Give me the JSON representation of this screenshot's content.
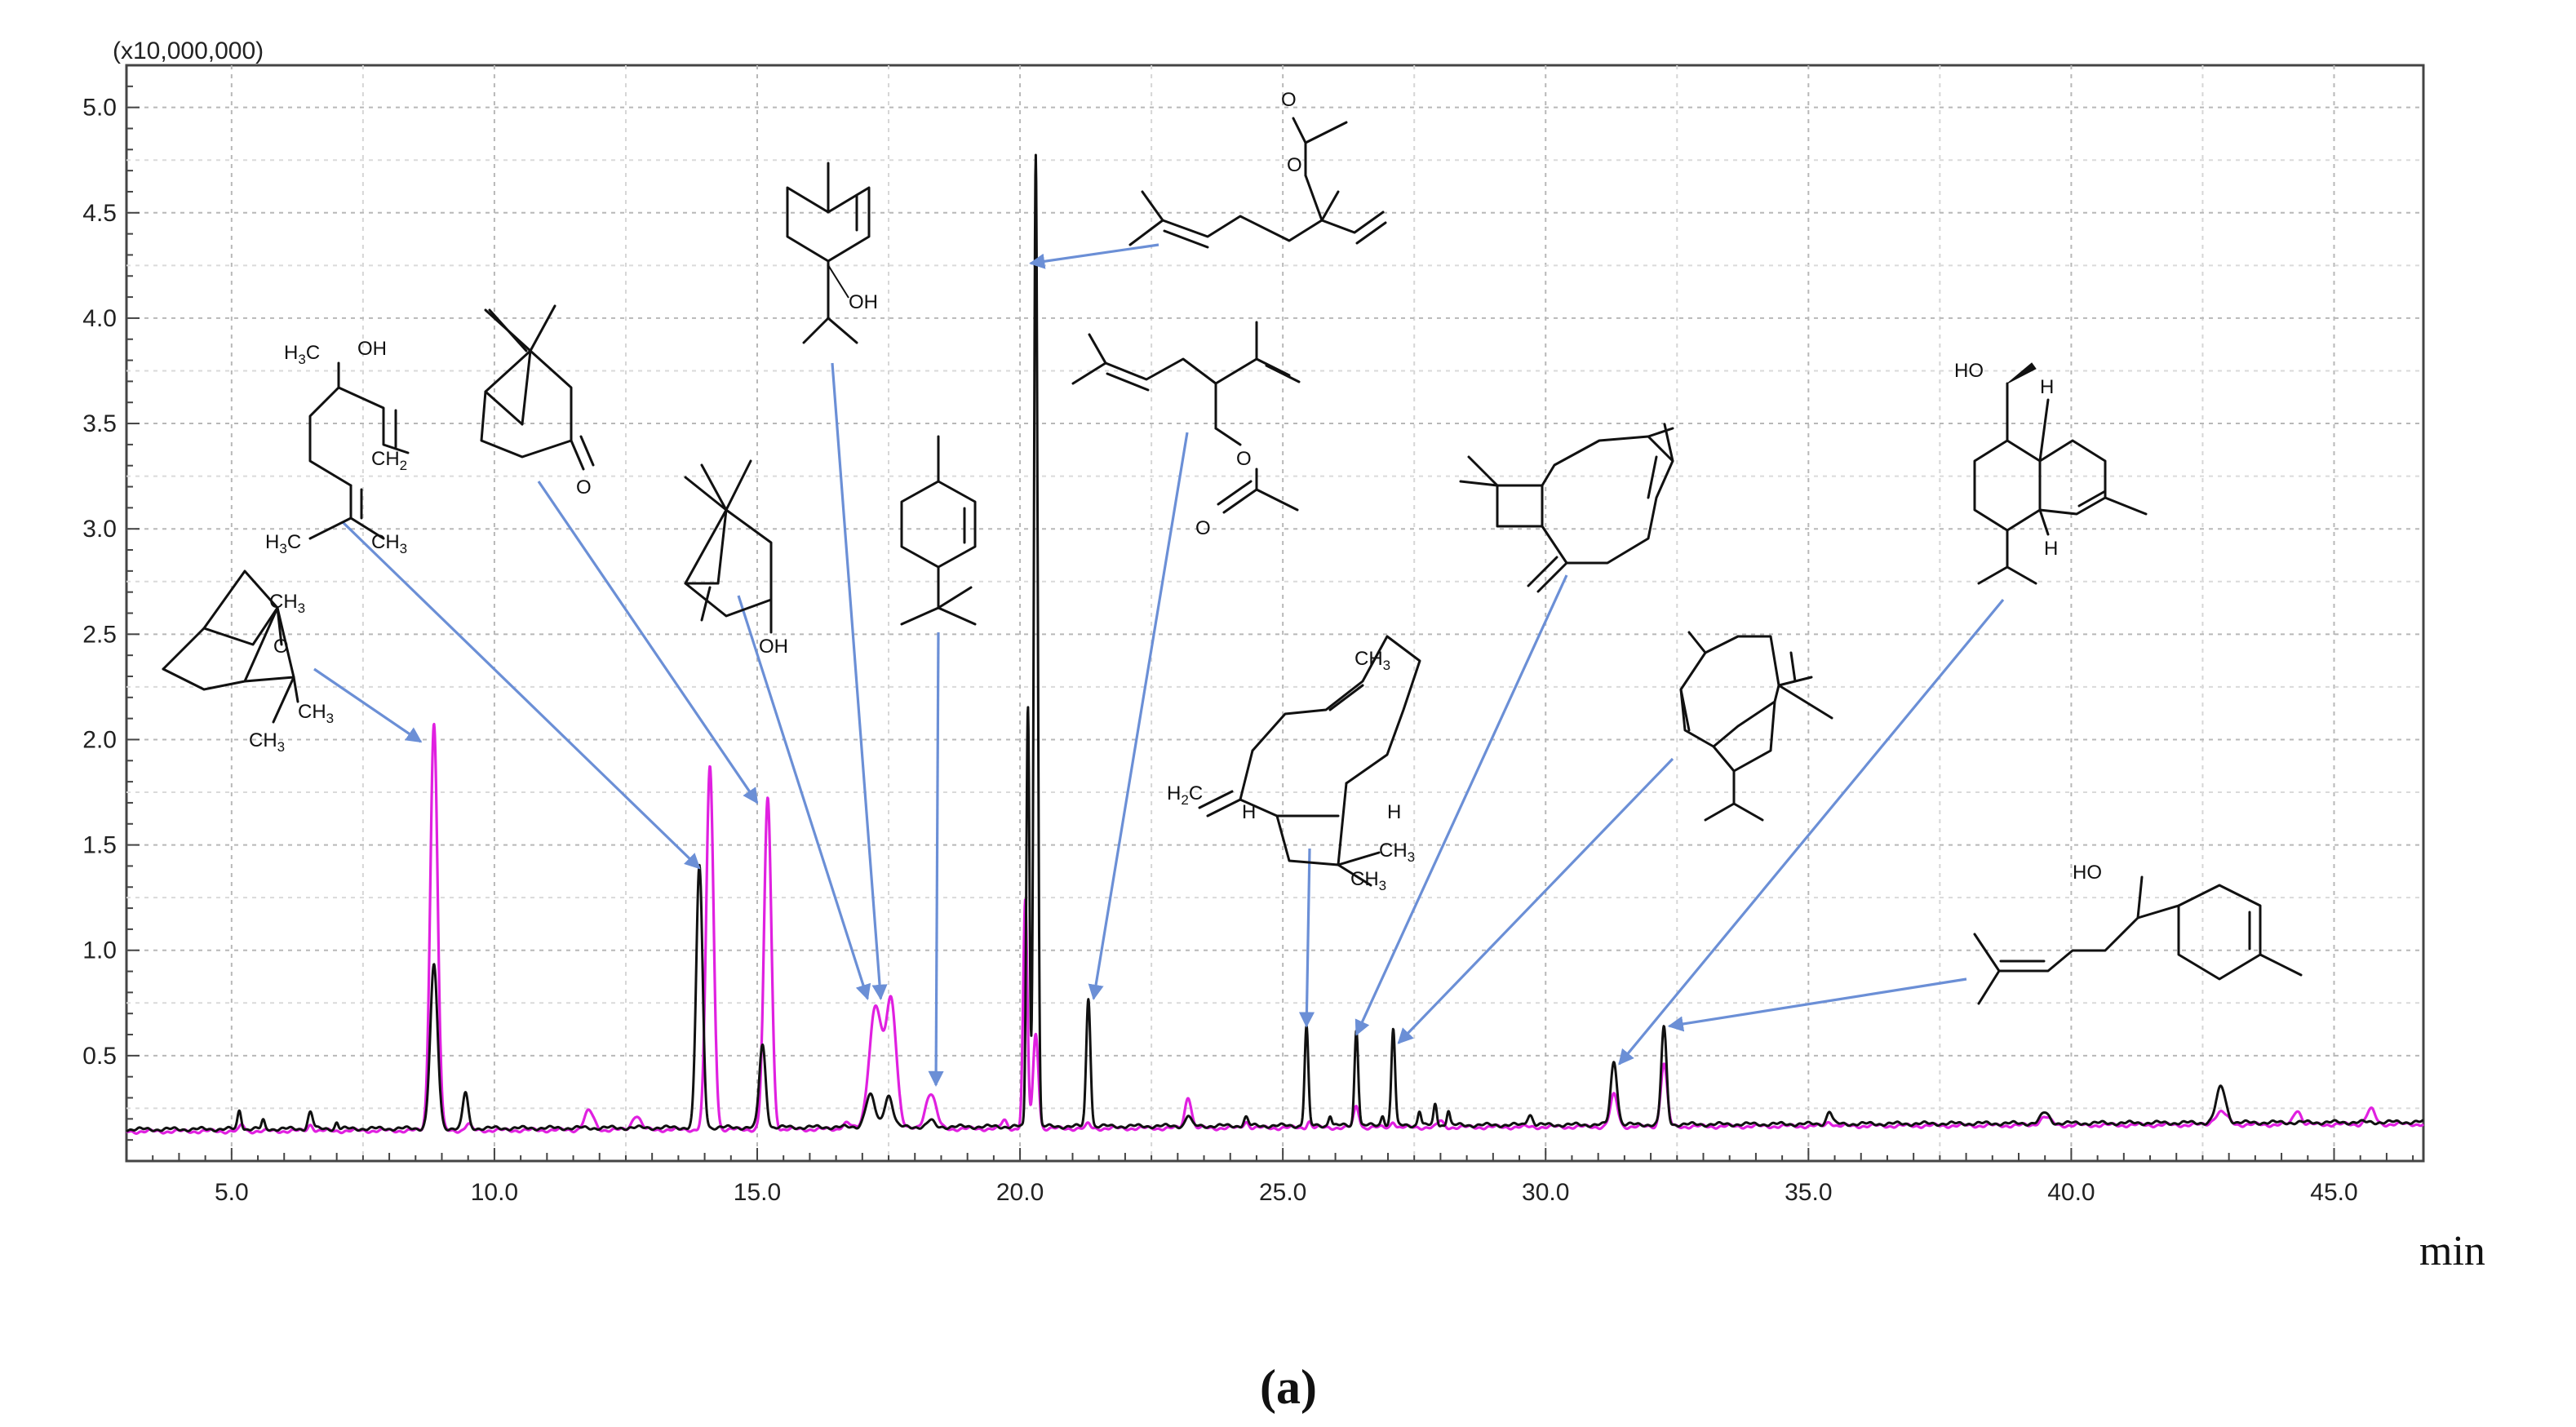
{
  "chart_data": {
    "type": "line",
    "title": "",
    "y_multiplier_label": "(x10,000,000)",
    "xlabel": "min",
    "caption": "(a)",
    "xlim": [
      3.0,
      46.7
    ],
    "ylim": [
      0.0,
      5.2
    ],
    "x_ticks": [
      "5.0",
      "10.0",
      "15.0",
      "20.0",
      "25.0",
      "30.0",
      "35.0",
      "40.0",
      "45.0"
    ],
    "y_ticks": [
      "0.5",
      "1.0",
      "1.5",
      "2.0",
      "2.5",
      "3.0",
      "3.5",
      "4.0",
      "4.5",
      "5.0"
    ],
    "x_tick_values": [
      5,
      10,
      15,
      20,
      25,
      30,
      35,
      40,
      45
    ],
    "y_tick_values": [
      0.5,
      1.0,
      1.5,
      2.0,
      2.5,
      3.0,
      3.5,
      4.0,
      4.5,
      5.0
    ],
    "grid": true,
    "series": [
      {
        "color": "#e020e0",
        "baseline": 0.14,
        "peaks": [
          [
            5.2,
            0.03,
            0.04
          ],
          [
            6.5,
            0.03,
            0.05
          ],
          [
            8.85,
            1.93,
            0.07
          ],
          [
            9.5,
            0.03,
            0.05
          ],
          [
            11.8,
            0.09,
            0.09
          ],
          [
            12.7,
            0.07,
            0.08
          ],
          [
            14.1,
            1.72,
            0.07
          ],
          [
            15.2,
            1.57,
            0.07
          ],
          [
            16.7,
            0.03,
            0.08
          ],
          [
            17.25,
            0.58,
            0.12
          ],
          [
            17.55,
            0.6,
            0.1
          ],
          [
            18.3,
            0.17,
            0.1
          ],
          [
            19.7,
            0.04,
            0.05
          ],
          [
            20.1,
            1.08,
            0.04
          ],
          [
            20.3,
            0.45,
            0.05
          ],
          [
            21.3,
            0.02,
            0.04
          ],
          [
            23.2,
            0.15,
            0.06
          ],
          [
            24.3,
            0.03,
            0.05
          ],
          [
            25.5,
            0.03,
            0.04
          ],
          [
            26.4,
            0.1,
            0.05
          ],
          [
            27.1,
            0.03,
            0.04
          ],
          [
            28.0,
            0.03,
            0.05
          ],
          [
            31.3,
            0.15,
            0.07
          ],
          [
            32.25,
            0.3,
            0.06
          ],
          [
            35.4,
            0.02,
            0.06
          ],
          [
            39.5,
            0.04,
            0.1
          ],
          [
            42.85,
            0.06,
            0.12
          ],
          [
            44.3,
            0.07,
            0.07
          ],
          [
            45.7,
            0.07,
            0.08
          ]
        ]
      },
      {
        "color": "#111111",
        "baseline": 0.15,
        "peaks": [
          [
            5.15,
            0.09,
            0.035
          ],
          [
            5.6,
            0.04,
            0.03
          ],
          [
            6.5,
            0.08,
            0.045
          ],
          [
            7.0,
            0.03,
            0.03
          ],
          [
            8.85,
            0.77,
            0.07
          ],
          [
            9.45,
            0.17,
            0.05
          ],
          [
            13.9,
            1.24,
            0.06
          ],
          [
            15.1,
            0.39,
            0.06
          ],
          [
            17.15,
            0.15,
            0.09
          ],
          [
            17.5,
            0.15,
            0.08
          ],
          [
            18.3,
            0.03,
            0.06
          ],
          [
            20.15,
            2.0,
            0.03
          ],
          [
            20.3,
            4.62,
            0.035
          ],
          [
            21.3,
            0.61,
            0.04
          ],
          [
            23.2,
            0.05,
            0.05
          ],
          [
            24.3,
            0.04,
            0.04
          ],
          [
            25.45,
            0.47,
            0.035
          ],
          [
            25.9,
            0.05,
            0.03
          ],
          [
            26.4,
            0.46,
            0.035
          ],
          [
            26.9,
            0.05,
            0.03
          ],
          [
            27.1,
            0.46,
            0.035
          ],
          [
            27.6,
            0.07,
            0.03
          ],
          [
            27.9,
            0.1,
            0.03
          ],
          [
            28.15,
            0.07,
            0.03
          ],
          [
            29.7,
            0.05,
            0.05
          ],
          [
            31.3,
            0.3,
            0.06
          ],
          [
            32.25,
            0.46,
            0.05
          ],
          [
            35.4,
            0.06,
            0.05
          ],
          [
            39.5,
            0.05,
            0.08
          ],
          [
            42.85,
            0.17,
            0.09
          ]
        ]
      }
    ],
    "annotations": [
      {
        "compound": "1,8-cineole",
        "target": [
          8.6,
          1.99
        ]
      },
      {
        "compound": "linalool",
        "target": [
          13.9,
          1.39
        ]
      },
      {
        "compound": "camphor",
        "target": [
          15.0,
          1.7
        ]
      },
      {
        "compound": "borneol",
        "target": [
          17.1,
          0.77
        ]
      },
      {
        "compound": "terpinen-4-ol",
        "target": [
          17.35,
          0.77
        ]
      },
      {
        "compound": "alpha-terpineol",
        "target": [
          18.4,
          0.36
        ]
      },
      {
        "compound": "linalyl acetate",
        "target": [
          20.2,
          4.26
        ]
      },
      {
        "compound": "lavandulyl acetate",
        "target": [
          21.4,
          0.77
        ]
      },
      {
        "compound": "beta-caryophyllene",
        "target": [
          25.45,
          0.64
        ]
      },
      {
        "compound": "beta-farnesene",
        "target": [
          26.4,
          0.6
        ]
      },
      {
        "compound": "germacrene D",
        "target": [
          27.2,
          0.56
        ]
      },
      {
        "compound": "tau-cadinol",
        "target": [
          31.4,
          0.46
        ]
      },
      {
        "compound": "alpha-bisabolol",
        "target": [
          32.35,
          0.64
        ]
      }
    ]
  },
  "structures": {
    "cineole": {
      "ch3_top": "CH",
      "ch3_top_sub": "3",
      "o": "O",
      "ch3_r": "CH",
      "ch3_r_sub": "3",
      "ch3_b": "CH",
      "ch3_b_sub": "3"
    },
    "linalool": {
      "h3c": "H",
      "h3c_sub": "3",
      "h3c_c": "C",
      "oh": "OH",
      "ch2": "CH",
      "ch2_sub": "2",
      "h3c2": "H",
      "h3c2_sub": "3",
      "h3c2_c": "C",
      "ch3": "CH",
      "ch3_sub": "3"
    },
    "camphor": {
      "o": "O"
    },
    "borneol": {
      "oh": "OH"
    },
    "terpinenol": {
      "oh": "OH"
    },
    "linalyl_acetate": {
      "o1": "O",
      "o2": "O"
    },
    "lavandulyl_acetate": {
      "o1": "O",
      "o2": "O"
    },
    "caryophyllene_oxide_like": {
      "ch3_top": "CH",
      "ch3_top_sub": "3",
      "h2c": "H",
      "h2c_sub": "2",
      "h2c_c": "C",
      "h_l": "H",
      "h_r": "H",
      "ch3_r": "CH",
      "ch3_r_sub": "3",
      "ch3_b": "CH",
      "ch3_b_sub": "3"
    },
    "cadinol": {
      "ho": "HO",
      "h_top": "H",
      "h_bottom": "H"
    },
    "bisabolol": {
      "ho": "HO"
    }
  }
}
